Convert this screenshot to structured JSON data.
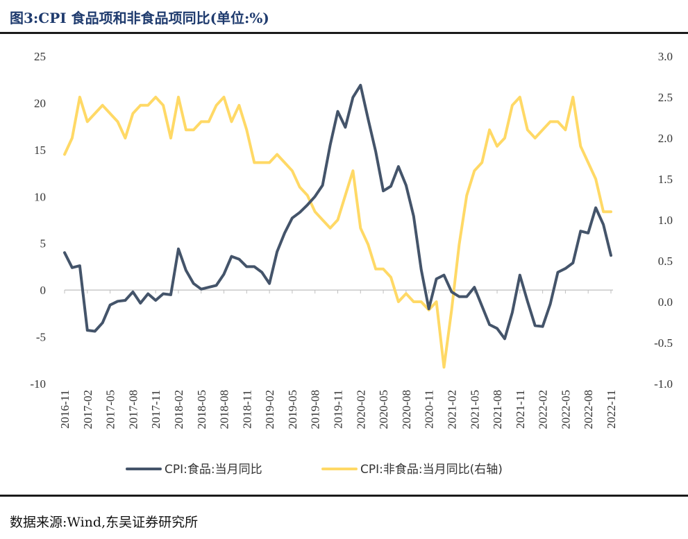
{
  "header": {
    "title": "图3:CPI 食品项和非食品项同比(单位:%)"
  },
  "footer": {
    "source": "数据来源:Wind,东吴证券研究所"
  },
  "chart_data": {
    "type": "line",
    "title": "图3:CPI 食品项和非食品项同比(单位:%)",
    "x": [
      "2016-11",
      "2016-12",
      "2017-01",
      "2017-02",
      "2017-03",
      "2017-04",
      "2017-05",
      "2017-06",
      "2017-07",
      "2017-08",
      "2017-09",
      "2017-10",
      "2017-11",
      "2017-12",
      "2018-01",
      "2018-02",
      "2018-03",
      "2018-04",
      "2018-05",
      "2018-06",
      "2018-07",
      "2018-08",
      "2018-09",
      "2018-10",
      "2018-11",
      "2018-12",
      "2019-01",
      "2019-02",
      "2019-03",
      "2019-04",
      "2019-05",
      "2019-06",
      "2019-07",
      "2019-08",
      "2019-09",
      "2019-10",
      "2019-11",
      "2019-12",
      "2020-01",
      "2020-02",
      "2020-03",
      "2020-04",
      "2020-05",
      "2020-06",
      "2020-07",
      "2020-08",
      "2020-09",
      "2020-10",
      "2020-11",
      "2020-12",
      "2021-01",
      "2021-02",
      "2021-03",
      "2021-04",
      "2021-05",
      "2021-06",
      "2021-07",
      "2021-08",
      "2021-09",
      "2021-10",
      "2021-11",
      "2021-12",
      "2022-01",
      "2022-02",
      "2022-03",
      "2022-04",
      "2022-05",
      "2022-06",
      "2022-07",
      "2022-08",
      "2022-09",
      "2022-10",
      "2022-11"
    ],
    "x_tick_labels": [
      "2016-11",
      "2017-02",
      "2017-05",
      "2017-08",
      "2017-11",
      "2018-02",
      "2018-05",
      "2018-08",
      "2018-11",
      "2019-02",
      "2019-05",
      "2019-08",
      "2019-11",
      "2020-02",
      "2020-05",
      "2020-08",
      "2020-11",
      "2021-02",
      "2021-05",
      "2021-08",
      "2021-11",
      "2022-02",
      "2022-05",
      "2022-08",
      "2022-11"
    ],
    "y_left": {
      "min": -10,
      "max": 25,
      "ticks": [
        "25",
        "20",
        "15",
        "10",
        "5",
        "0",
        "-5",
        "-10"
      ]
    },
    "y_right": {
      "min": -1.0,
      "max": 3.0,
      "ticks": [
        "3.0",
        "2.5",
        "2.0",
        "1.5",
        "1.0",
        "0.5",
        "0.0",
        "-0.5",
        "-1.0"
      ]
    },
    "legend_position": "bottom",
    "series": [
      {
        "name": "CPI:食品:当月同比",
        "axis": "left",
        "color": "#44546a",
        "values": [
          4.0,
          2.4,
          2.6,
          -4.3,
          -4.4,
          -3.5,
          -1.6,
          -1.2,
          -1.1,
          -0.2,
          -1.4,
          -0.4,
          -1.1,
          -0.4,
          -0.5,
          4.4,
          2.1,
          0.7,
          0.1,
          0.3,
          0.5,
          1.7,
          3.6,
          3.3,
          2.5,
          2.5,
          1.9,
          0.7,
          4.1,
          6.1,
          7.7,
          8.3,
          9.1,
          10.0,
          11.2,
          15.5,
          19.1,
          17.4,
          20.6,
          21.9,
          18.3,
          14.8,
          10.6,
          11.1,
          13.2,
          11.2,
          7.9,
          2.2,
          -2.0,
          1.2,
          1.6,
          -0.2,
          -0.7,
          -0.7,
          0.3,
          -1.7,
          -3.7,
          -4.1,
          -5.2,
          -2.4,
          1.6,
          -1.2,
          -3.8,
          -3.9,
          -1.5,
          1.9,
          2.3,
          2.9,
          6.3,
          6.1,
          8.8,
          7.0,
          3.7
        ]
      },
      {
        "name": "CPI:非食品:当月同比(右轴)",
        "axis": "right",
        "color": "#ffd966",
        "values": [
          1.8,
          2.0,
          2.5,
          2.2,
          2.3,
          2.4,
          2.3,
          2.2,
          2.0,
          2.3,
          2.4,
          2.4,
          2.5,
          2.4,
          2.0,
          2.5,
          2.1,
          2.1,
          2.2,
          2.2,
          2.4,
          2.5,
          2.2,
          2.4,
          2.1,
          1.7,
          1.7,
          1.7,
          1.8,
          1.7,
          1.6,
          1.4,
          1.3,
          1.1,
          1.0,
          0.9,
          1.0,
          1.3,
          1.6,
          0.9,
          0.7,
          0.4,
          0.4,
          0.3,
          0.0,
          0.1,
          0.0,
          0.0,
          -0.1,
          0.0,
          -0.8,
          -0.1,
          0.7,
          1.3,
          1.6,
          1.7,
          2.1,
          1.9,
          2.0,
          2.4,
          2.5,
          2.1,
          2.0,
          2.1,
          2.2,
          2.2,
          2.1,
          2.5,
          1.9,
          1.7,
          1.5,
          1.1,
          1.1
        ]
      }
    ]
  }
}
